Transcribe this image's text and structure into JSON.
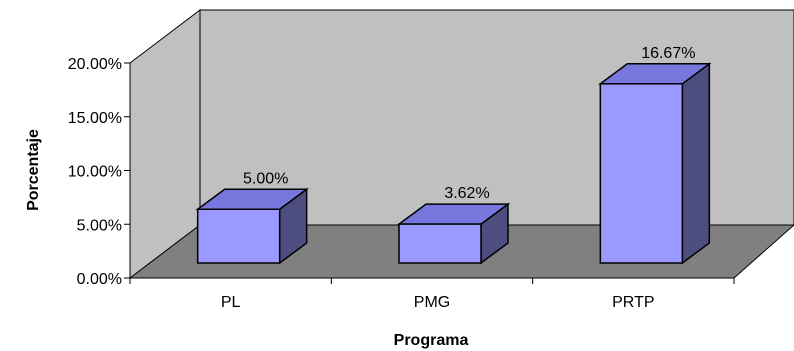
{
  "chart_data": {
    "type": "bar",
    "categories": [
      "PL",
      "PMG",
      "PRTP"
    ],
    "values": [
      5.0,
      3.62,
      16.67
    ],
    "data_labels": [
      "5.00%",
      "3.62%",
      "16.67%"
    ],
    "xlabel": "Programa",
    "ylabel": "Porcentaje",
    "ylim": [
      0,
      20
    ],
    "yticks": [
      0,
      5,
      10,
      15,
      20
    ],
    "ytick_labels": [
      "0.00%",
      "5.00%",
      "10.00%",
      "15.00%",
      "20.00%"
    ],
    "grid": false,
    "legend": "none",
    "three_d": true,
    "colors": {
      "bar_front": "#9999ff",
      "bar_top": "#7777dd",
      "bar_side": "#4d4d80",
      "wall": "#c0c0c0",
      "floor": "#808080"
    }
  }
}
